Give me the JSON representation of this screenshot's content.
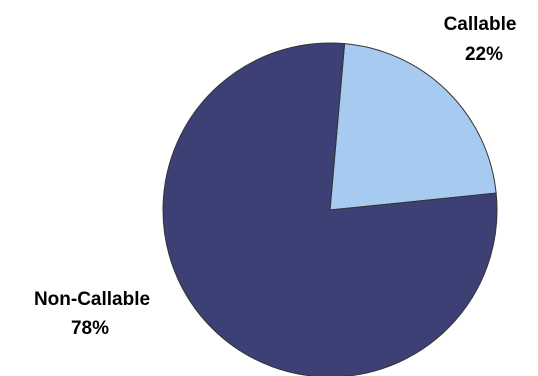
{
  "chart_data": {
    "type": "pie",
    "slices": [
      {
        "label": "Callable",
        "value": 22,
        "display": "22%",
        "color": "#A6CAF0"
      },
      {
        "label": "Non-Callable",
        "value": 78,
        "display": "78%",
        "color": "#3D4075"
      }
    ],
    "start_angle_deg": 5,
    "stroke": "#333333",
    "legend": "none"
  }
}
